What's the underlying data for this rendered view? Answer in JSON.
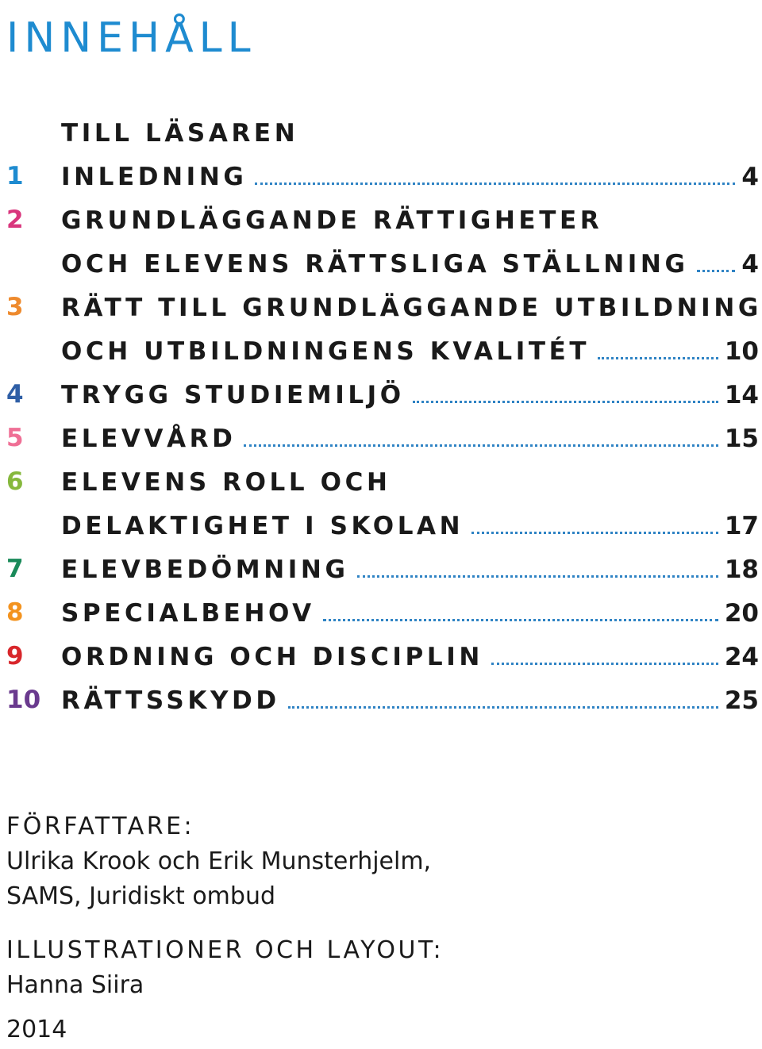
{
  "title": "INNEHÅLL",
  "toc": [
    {
      "num": "",
      "num_color": "#1a1a1a",
      "lines": [
        {
          "text": "TILL LÄSAREN",
          "page": ""
        }
      ]
    },
    {
      "num": "1",
      "num_color": "#1e8bd0",
      "lines": [
        {
          "text": "INLEDNING",
          "page": "4"
        }
      ]
    },
    {
      "num": "2",
      "num_color": "#d9367d",
      "lines": [
        {
          "text": "GRUNDLÄGGANDE RÄTTIGHETER",
          "page": ""
        },
        {
          "text": "OCH ELEVENS RÄTTSLIGA STÄLLNING",
          "page": "4"
        }
      ]
    },
    {
      "num": "3",
      "num_color": "#ee8a2d",
      "lines": [
        {
          "text": "RÄTT TILL GRUNDLÄGGANDE UTBILDNING",
          "page": ""
        },
        {
          "text": "OCH UTBILDNINGENS KVALITÉT",
          "page": "10"
        }
      ]
    },
    {
      "num": "4",
      "num_color": "#2f5fa6",
      "lines": [
        {
          "text": "TRYGG STUDIEMILJÖ",
          "page": "14"
        }
      ]
    },
    {
      "num": "5",
      "num_color": "#ef6f95",
      "lines": [
        {
          "text": "ELEVVÅRD",
          "page": "15"
        }
      ]
    },
    {
      "num": "6",
      "num_color": "#86b83d",
      "lines": [
        {
          "text": "ELEVENS ROLL OCH",
          "page": ""
        },
        {
          "text": "DELAKTIGHET I SKOLAN",
          "page": "17"
        }
      ]
    },
    {
      "num": "7",
      "num_color": "#1a8a5a",
      "lines": [
        {
          "text": "ELEVBEDÖMNING",
          "page": "18"
        }
      ]
    },
    {
      "num": "8",
      "num_color": "#f3931f",
      "lines": [
        {
          "text": "SPECIALBEHOV",
          "page": "20"
        }
      ]
    },
    {
      "num": "9",
      "num_color": "#d8262b",
      "lines": [
        {
          "text": "ORDNING OCH DISCIPLIN",
          "page": "24"
        }
      ]
    },
    {
      "num": "10",
      "num_color": "#6a3a8e",
      "lines": [
        {
          "text": "RÄTTSSKYDD",
          "page": "25"
        }
      ]
    }
  ],
  "credits": {
    "authors_heading": "FÖRFATTARE:",
    "authors_line1": "Ulrika Krook och Erik Munsterhjelm,",
    "authors_line2": "SAMS, Juridiskt ombud",
    "illustration_heading": "ILLUSTRATIONER OCH LAYOUT:",
    "illustrator": "Hanna Siira",
    "year": "2014"
  },
  "colors": {
    "accent": "#1e8bd0",
    "leader": "#2f83c4",
    "text": "#1a1a1a"
  }
}
